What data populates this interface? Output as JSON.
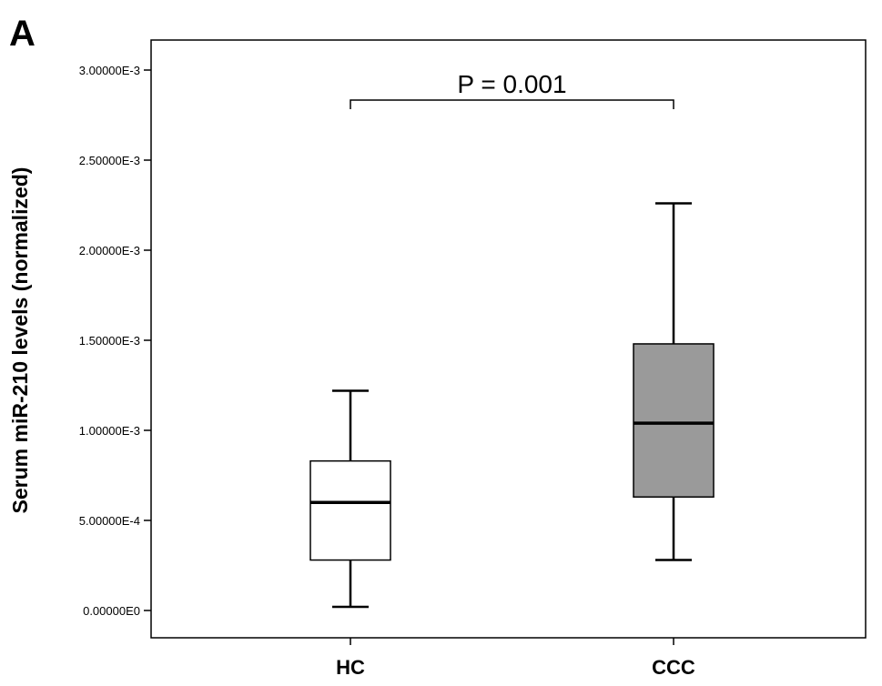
{
  "panel_label": "A",
  "chart_data": {
    "type": "box",
    "ylabel": "Serum miR-210 levels (normalized)",
    "xlabel": "",
    "ylim": [
      0,
      0.003
    ],
    "yticks": [
      {
        "value": 0.0,
        "label": "0.00000E0"
      },
      {
        "value": 0.0005,
        "label": "5.00000E-4"
      },
      {
        "value": 0.001,
        "label": "1.00000E-3"
      },
      {
        "value": 0.0015,
        "label": "1.50000E-3"
      },
      {
        "value": 0.002,
        "label": "2.00000E-3"
      },
      {
        "value": 0.0025,
        "label": "2.50000E-3"
      },
      {
        "value": 0.003,
        "label": "3.00000E-3"
      }
    ],
    "categories": [
      "HC",
      "CCC"
    ],
    "boxes": [
      {
        "category": "HC",
        "min": 2e-05,
        "q1": 0.00028,
        "median": 0.0006,
        "q3": 0.00083,
        "max": 0.00122,
        "fill": "#ffffff"
      },
      {
        "category": "CCC",
        "min": 0.00028,
        "q1": 0.00063,
        "median": 0.00104,
        "q3": 0.00148,
        "max": 0.00226,
        "fill": "#9a9a9a"
      }
    ],
    "annotation": {
      "text": "P = 0.001",
      "from": "HC",
      "to": "CCC"
    },
    "grid": false
  }
}
